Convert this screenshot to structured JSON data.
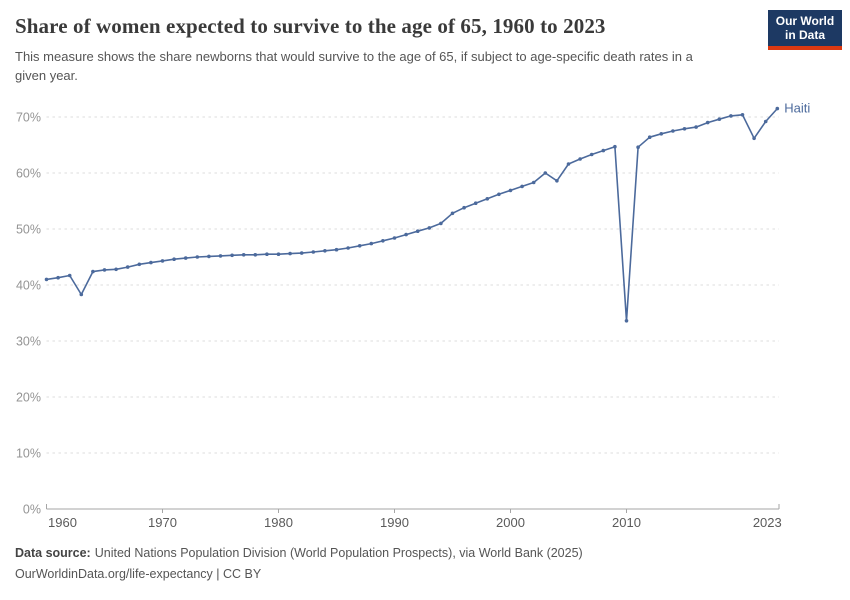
{
  "header": {
    "title": "Share of women expected to survive to the age of 65, 1960 to 2023",
    "subtitle": "This measure shows the share newborns that would survive to the age of 65, if subject to age-specific death rates in a given year.",
    "logo": {
      "line1": "Our World",
      "line2": "in Data"
    }
  },
  "chart_data": {
    "type": "line",
    "title": "Share of women expected to survive to the age of 65, 1960 to 2023",
    "entity": "Haiti",
    "end_label": "Haiti",
    "x": [
      1960,
      1961,
      1962,
      1963,
      1964,
      1965,
      1966,
      1967,
      1968,
      1969,
      1970,
      1971,
      1972,
      1973,
      1974,
      1975,
      1976,
      1977,
      1978,
      1979,
      1980,
      1981,
      1982,
      1983,
      1984,
      1985,
      1986,
      1987,
      1988,
      1989,
      1990,
      1991,
      1992,
      1993,
      1994,
      1995,
      1996,
      1997,
      1998,
      1999,
      2000,
      2001,
      2002,
      2003,
      2004,
      2005,
      2006,
      2007,
      2008,
      2009,
      2010,
      2011,
      2012,
      2013,
      2014,
      2015,
      2016,
      2017,
      2018,
      2019,
      2020,
      2021,
      2022,
      2023
    ],
    "series": [
      {
        "name": "Haiti",
        "color": "#4C6A9C",
        "values": [
          41.0,
          41.3,
          41.7,
          38.3,
          42.4,
          42.7,
          42.8,
          43.2,
          43.7,
          44.0,
          44.3,
          44.6,
          44.8,
          45.0,
          45.1,
          45.2,
          45.3,
          45.4,
          45.4,
          45.5,
          45.5,
          45.6,
          45.7,
          45.9,
          46.1,
          46.3,
          46.6,
          47.0,
          47.4,
          47.9,
          48.4,
          49.0,
          49.6,
          50.2,
          51.0,
          52.8,
          53.8,
          54.6,
          55.4,
          56.2,
          56.9,
          57.6,
          58.3,
          60.0,
          58.6,
          61.6,
          62.5,
          63.3,
          64.0,
          64.7,
          33.6,
          64.6,
          66.4,
          67.0,
          67.5,
          67.9,
          68.2,
          69.0,
          69.6,
          70.2,
          70.4,
          66.2,
          69.2,
          71.5
        ]
      }
    ],
    "xlim": [
      1960,
      2023
    ],
    "ylim": [
      0,
      73
    ],
    "xticks": [
      1960,
      1970,
      1980,
      1990,
      2000,
      2010,
      2023
    ],
    "yticks": [
      0,
      10,
      20,
      30,
      40,
      50,
      60,
      70
    ],
    "ytick_suffix": "%",
    "grid": true,
    "legend": "end-of-line-label"
  },
  "footer": {
    "source_label": "Data source:",
    "source_text": "United Nations Population Division (World Population Prospects), via World Bank (2025)",
    "link": "OurWorldinData.org/life-expectancy",
    "separator": "|",
    "license": "CC BY"
  },
  "colors": {
    "line": "#4C6A9C",
    "grid": "#dcdcdc",
    "axis": "#a6a6a6",
    "y_tick_label": "#949494",
    "x_tick_label": "#5b5b5b",
    "logo_bg": "#1d3963",
    "logo_stripe": "#dc3912"
  }
}
